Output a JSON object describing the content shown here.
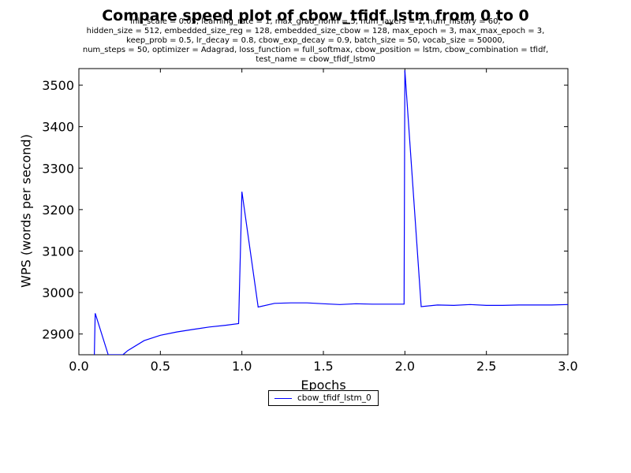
{
  "chart_data": {
    "type": "line",
    "title": "Compare speed plot of cbow_tfidf_lstm from 0 to 0",
    "subtitle_lines": [
      "init_scale = 0.05, learning_rate = 1, max_grad_norm = 5, num_layers = 1, num_history = 60,",
      "hidden_size = 512, embedded_size_reg = 128, embedded_size_cbow = 128, max_epoch = 3, max_max_epoch = 3,",
      "keep_prob = 0.5, lr_decay = 0.8, cbow_exp_decay = 0.9, batch_size = 50, vocab_size = 50000,",
      "num_steps = 50, optimizer = Adagrad, loss_function = full_softmax, cbow_position = lstm, cbow_combination = tfidf,",
      "test_name = cbow_tfidf_lstm0"
    ],
    "xlabel": "Epochs",
    "ylabel": "WPS (words per second)",
    "xlim": [
      0.0,
      3.0
    ],
    "ylim": [
      2850,
      3540
    ],
    "xticks": [
      0.0,
      0.5,
      1.0,
      1.5,
      2.0,
      2.5,
      3.0
    ],
    "xtick_labels": [
      "0.0",
      "0.5",
      "1.0",
      "1.5",
      "2.0",
      "2.5",
      "3.0"
    ],
    "yticks": [
      2900,
      3000,
      3100,
      3200,
      3300,
      3400,
      3500
    ],
    "ytick_labels": [
      "2900",
      "3000",
      "3100",
      "3200",
      "3300",
      "3400",
      "3500"
    ],
    "grid": false,
    "legend_position": "below",
    "series": [
      {
        "name": "cbow_tfidf_lstm_0",
        "color": "#0000ff",
        "x": [
          0.095,
          0.1,
          0.18,
          0.27,
          0.3,
          0.4,
          0.5,
          0.6,
          0.7,
          0.8,
          0.9,
          0.98,
          1.0,
          1.1,
          1.2,
          1.3,
          1.4,
          1.5,
          1.6,
          1.7,
          1.8,
          1.9,
          1.995,
          2.0,
          2.1,
          2.2,
          2.3,
          2.4,
          2.5,
          2.6,
          2.7,
          2.8,
          2.9,
          3.0
        ],
        "y": [
          2850,
          2950,
          2850,
          2850,
          2860,
          2884,
          2897,
          2905,
          2911,
          2917,
          2921,
          2925,
          3243,
          2965,
          2974,
          2975,
          2975,
          2973,
          2971,
          2973,
          2972,
          2972,
          2972,
          3536,
          2966,
          2970,
          2969,
          2971,
          2969,
          2969,
          2970,
          2970,
          2970,
          2971
        ]
      }
    ]
  }
}
